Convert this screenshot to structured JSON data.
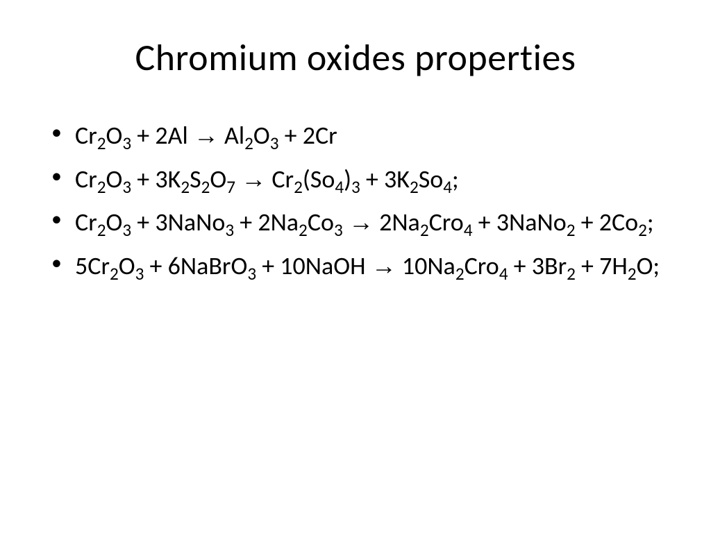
{
  "slide": {
    "title": "Chromium oxides properties",
    "background_color": "#ffffff",
    "text_color": "#000000",
    "title_fontsize": 54,
    "body_fontsize": 36,
    "font_family": "Calibri",
    "arrow_glyph": "→",
    "equations": [
      {
        "tokens": [
          {
            "t": "Cr"
          },
          {
            "t": "2",
            "sub": true
          },
          {
            "t": "O"
          },
          {
            "t": "3",
            "sub": true
          },
          {
            "t": " + 2Al "
          },
          {
            "t": "arrow"
          },
          {
            "t": " Al"
          },
          {
            "t": "2",
            "sub": true
          },
          {
            "t": "O"
          },
          {
            "t": "3",
            "sub": true
          },
          {
            "t": " + 2Cr"
          }
        ]
      },
      {
        "tokens": [
          {
            "t": "Cr"
          },
          {
            "t": "2",
            "sub": true
          },
          {
            "t": "O"
          },
          {
            "t": "3",
            "sub": true
          },
          {
            "t": " + 3K"
          },
          {
            "t": "2",
            "sub": true
          },
          {
            "t": "S"
          },
          {
            "t": "2",
            "sub": true
          },
          {
            "t": "O"
          },
          {
            "t": "7",
            "sub": true
          },
          {
            "t": " "
          },
          {
            "t": "arrow"
          },
          {
            "t": " Cr"
          },
          {
            "t": "2",
            "sub": true
          },
          {
            "t": "(So"
          },
          {
            "t": "4",
            "sub": true
          },
          {
            "t": ")"
          },
          {
            "t": "3",
            "sub": true
          },
          {
            "t": " + 3K"
          },
          {
            "t": "2",
            "sub": true
          },
          {
            "t": "So"
          },
          {
            "t": "4",
            "sub": true
          },
          {
            "t": ";"
          }
        ]
      },
      {
        "tokens": [
          {
            "t": "Cr"
          },
          {
            "t": "2",
            "sub": true
          },
          {
            "t": "O"
          },
          {
            "t": "3",
            "sub": true
          },
          {
            "t": " + 3NaNo"
          },
          {
            "t": "3",
            "sub": true
          },
          {
            "t": " + 2Na"
          },
          {
            "t": "2",
            "sub": true
          },
          {
            "t": "Co"
          },
          {
            "t": "3",
            "sub": true
          },
          {
            "t": " "
          },
          {
            "t": "arrow"
          },
          {
            "t": " 2Na"
          },
          {
            "t": "2",
            "sub": true
          },
          {
            "t": "Cro"
          },
          {
            "t": "4",
            "sub": true
          },
          {
            "t": " + 3NaNo"
          },
          {
            "t": "2",
            "sub": true
          },
          {
            "t": " + 2Co"
          },
          {
            "t": "2",
            "sub": true
          },
          {
            "t": ";"
          }
        ]
      },
      {
        "tokens": [
          {
            "t": "5Cr"
          },
          {
            "t": "2",
            "sub": true
          },
          {
            "t": "O"
          },
          {
            "t": "3",
            "sub": true
          },
          {
            "t": " + 6NaBrO"
          },
          {
            "t": "3",
            "sub": true
          },
          {
            "t": " + 10NaOH "
          },
          {
            "t": "arrow"
          },
          {
            "t": " 10Na"
          },
          {
            "t": "2",
            "sub": true
          },
          {
            "t": "Cro"
          },
          {
            "t": "4",
            "sub": true
          },
          {
            "t": " + 3Br"
          },
          {
            "t": "2",
            "sub": true
          },
          {
            "t": " + 7H"
          },
          {
            "t": "2",
            "sub": true
          },
          {
            "t": "O;"
          }
        ]
      }
    ]
  }
}
